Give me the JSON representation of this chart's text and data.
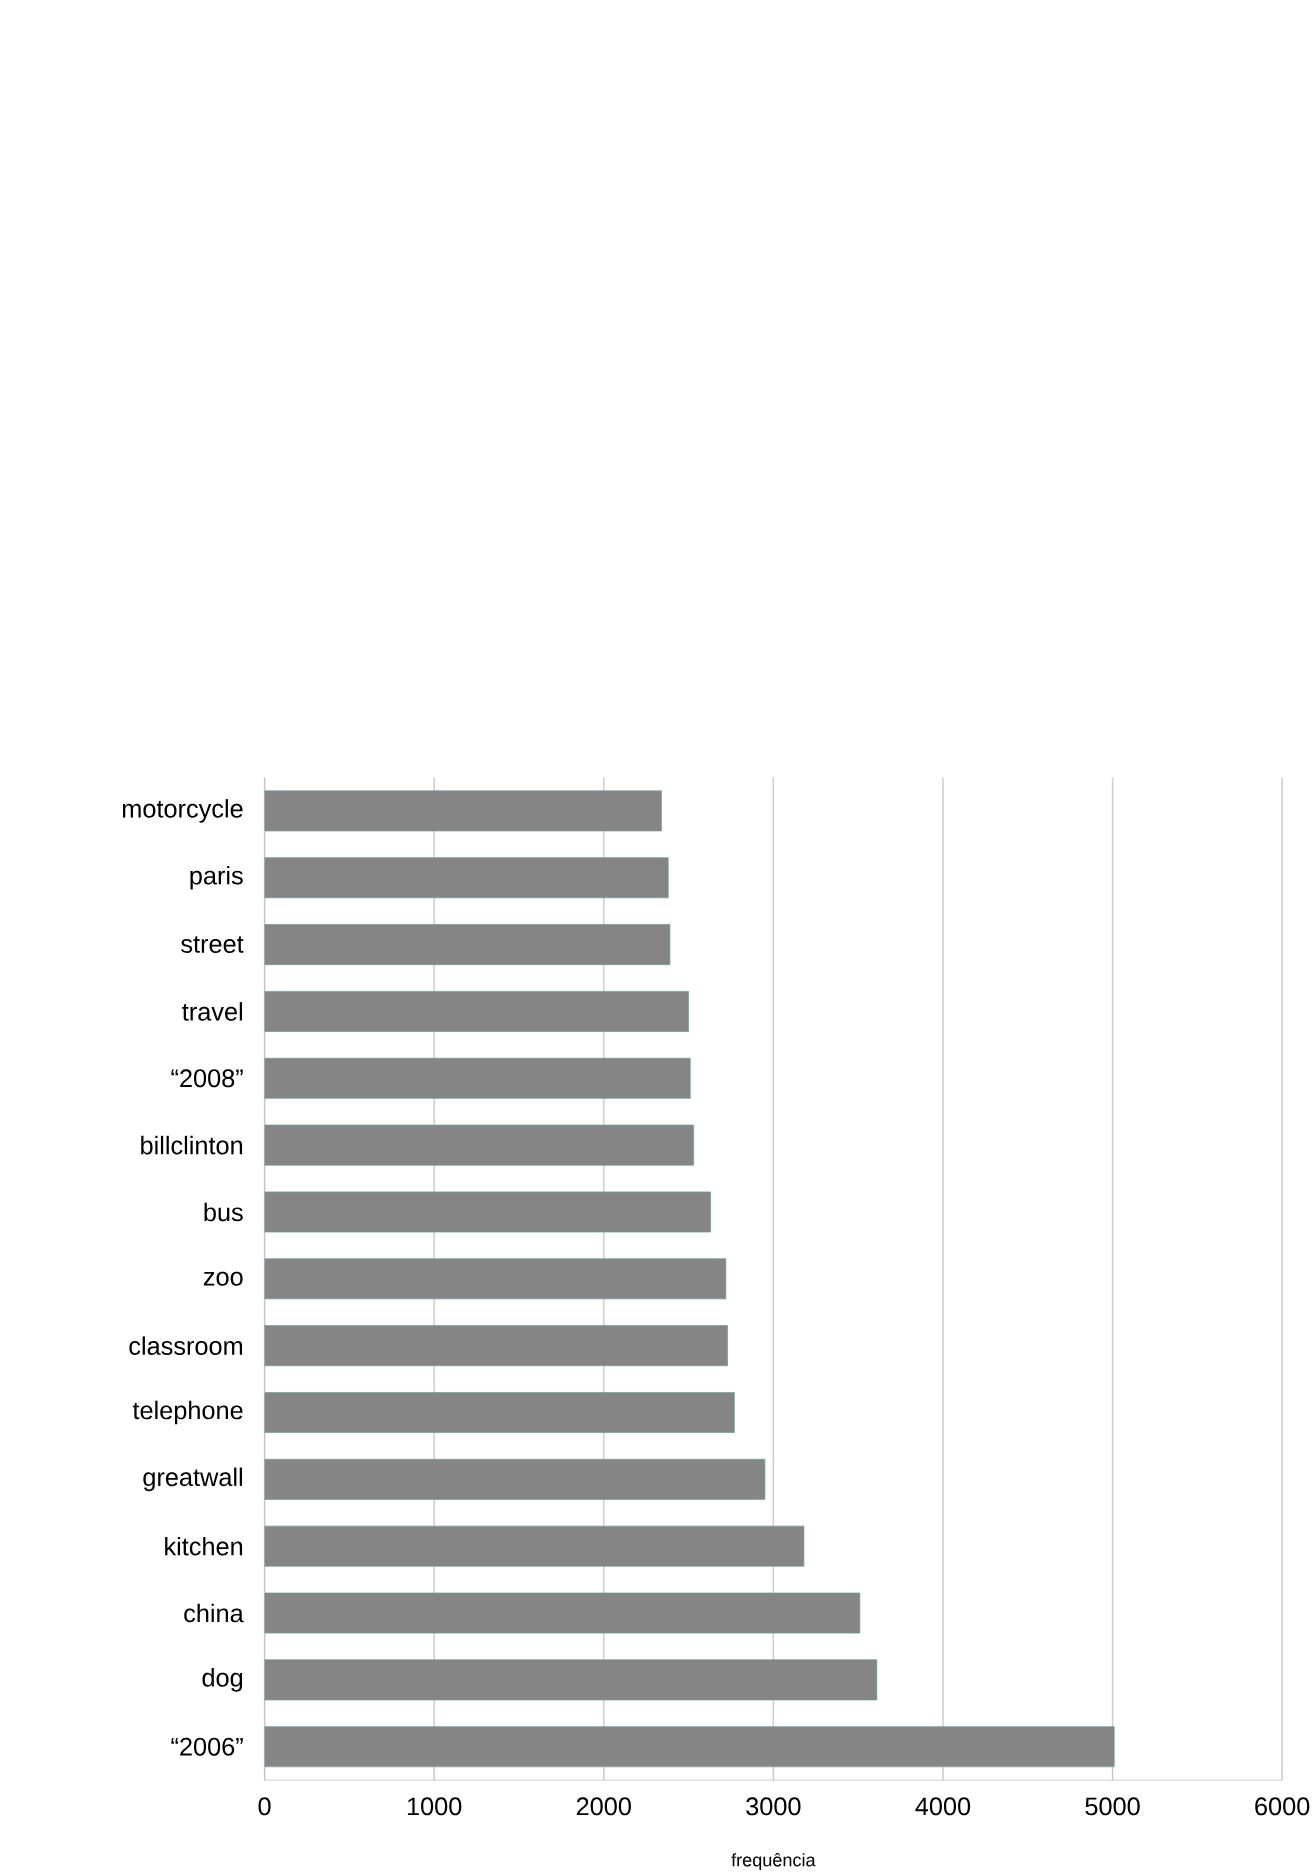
{
  "chart_data": {
    "type": "bar",
    "orientation": "horizontal",
    "xlabel": "frequência",
    "categories": [
      "motorcycle",
      "paris",
      "street",
      "travel",
      "“2008”",
      "billclinton",
      "bus",
      "zoo",
      "classroom",
      "telephone",
      "greatwall",
      "kitchen",
      "china",
      "dog",
      "“2006”"
    ],
    "values": [
      2340,
      2380,
      2390,
      2500,
      2510,
      2530,
      2630,
      2720,
      2730,
      2770,
      2950,
      3180,
      3510,
      3610,
      5010
    ],
    "color": "#858585",
    "xlim": [
      0,
      6000
    ],
    "xticks": [
      0,
      1000,
      2000,
      3000,
      4000,
      5000,
      6000
    ],
    "grid": "x"
  }
}
